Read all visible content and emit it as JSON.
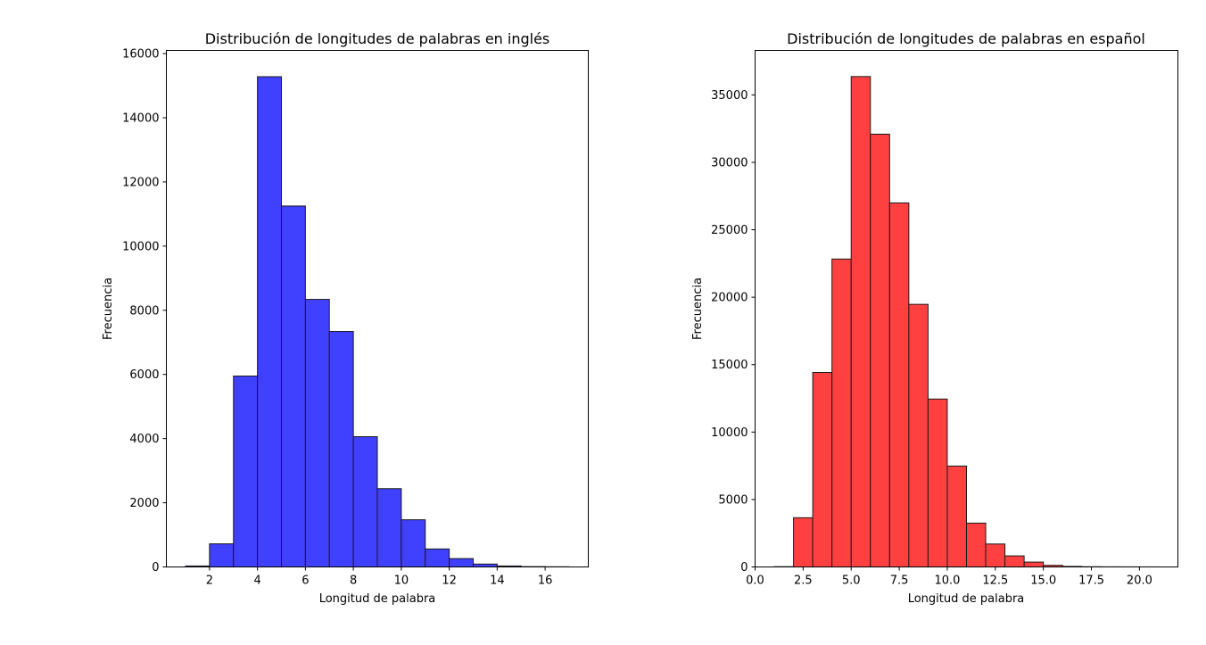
{
  "chart_data": [
    {
      "type": "bar",
      "title": "Distribución de longitudes de palabras en inglés",
      "xlabel": "Longitud de palabra",
      "ylabel": "Frecuencia",
      "color": "#4040ff",
      "xlim": [
        0.2,
        17.8
      ],
      "ylim": [
        0,
        16100
      ],
      "xticks": [
        2,
        4,
        6,
        8,
        10,
        12,
        14,
        16
      ],
      "xtick_labels": [
        "2",
        "4",
        "6",
        "8",
        "10",
        "12",
        "14",
        "16"
      ],
      "yticks": [
        0,
        2000,
        4000,
        6000,
        8000,
        10000,
        12000,
        14000,
        16000
      ],
      "ytick_labels": [
        "0",
        "2000",
        "4000",
        "6000",
        "8000",
        "10000",
        "12000",
        "14000",
        "16000"
      ],
      "bin_edges": [
        1,
        2,
        3,
        4,
        5,
        6,
        7,
        8,
        9,
        10,
        11,
        12,
        13,
        14,
        15,
        16,
        17
      ],
      "values": [
        30,
        720,
        5950,
        15280,
        11250,
        8340,
        7340,
        4060,
        2440,
        1470,
        560,
        260,
        90,
        30,
        10,
        5
      ],
      "grid": false
    },
    {
      "type": "bar",
      "title": "Distribución de longitudes de palabras en español",
      "xlabel": "Longitud de palabra",
      "ylabel": "Frecuencia",
      "color": "#ff4040",
      "xlim": [
        0,
        22
      ],
      "ylim": [
        0,
        38300
      ],
      "xticks": [
        0,
        2.5,
        5,
        7.5,
        10,
        12.5,
        15,
        17.5,
        20
      ],
      "xtick_labels": [
        "0.0",
        "2.5",
        "5.0",
        "7.5",
        "10.0",
        "12.5",
        "15.0",
        "17.5",
        "20.0"
      ],
      "yticks": [
        0,
        5000,
        10000,
        15000,
        20000,
        25000,
        30000,
        35000
      ],
      "ytick_labels": [
        "0",
        "5000",
        "10000",
        "15000",
        "20000",
        "25000",
        "30000",
        "35000"
      ],
      "bin_edges": [
        1,
        2,
        3,
        4,
        5,
        6,
        7,
        8,
        9,
        10,
        11,
        12,
        13,
        14,
        15,
        16,
        17,
        18,
        19,
        20,
        21
      ],
      "values": [
        20,
        3650,
        14420,
        22830,
        36360,
        32090,
        26990,
        19470,
        12450,
        7480,
        3250,
        1700,
        820,
        360,
        120,
        40,
        15,
        8,
        4,
        3
      ],
      "grid": false
    }
  ]
}
